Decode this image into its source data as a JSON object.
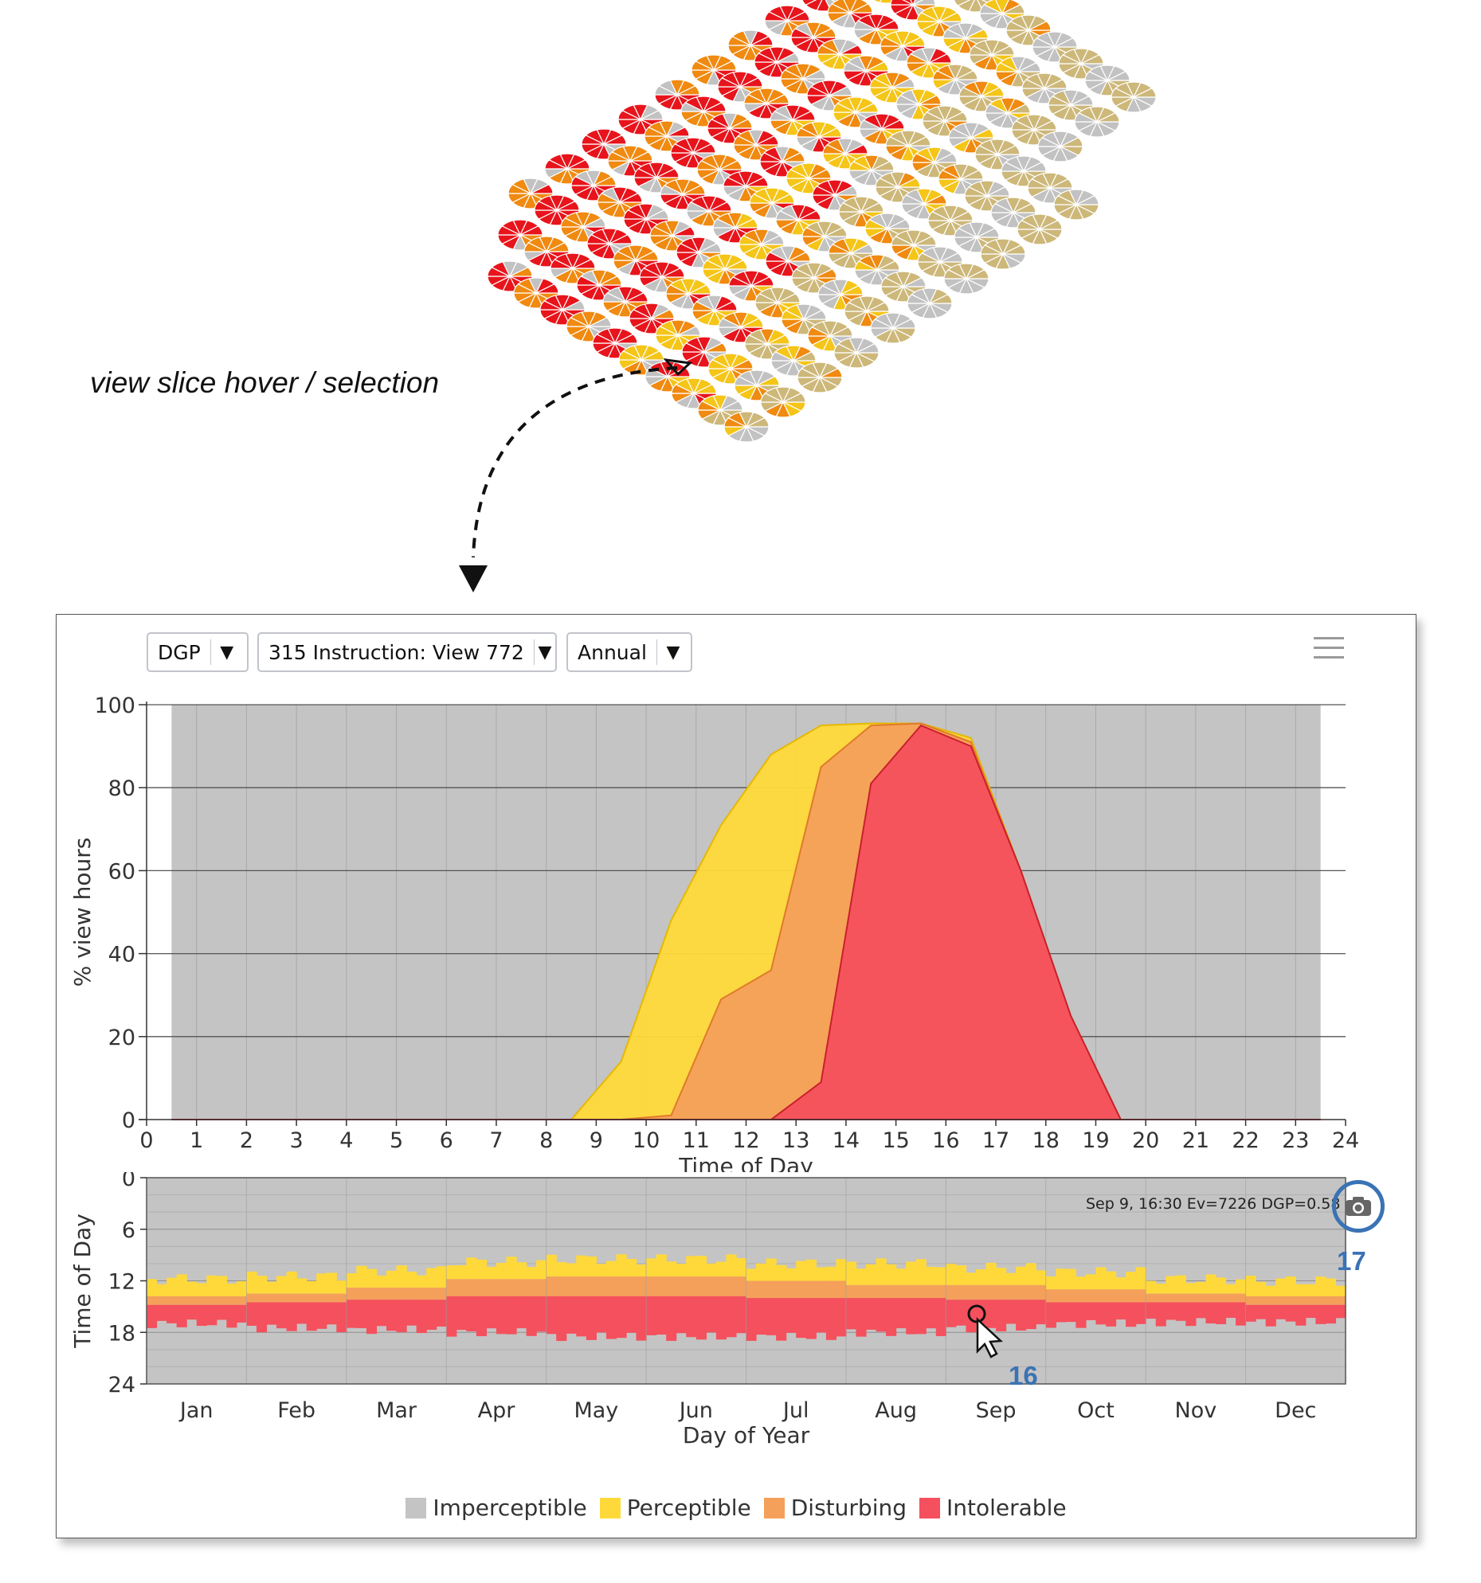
{
  "annotation": {
    "text": "view slice hover / selection"
  },
  "toolbar": {
    "metric": "DGP",
    "view": "315 Instruction: View 772",
    "period": "Annual",
    "caret": "▼"
  },
  "colors": {
    "imperceptible": "#c4c4c4",
    "perceptible": "#ffd93a",
    "disturbing": "#f4a05a",
    "intolerable": "#f5505d",
    "accent": "#3a73b5"
  },
  "legend": [
    "Imperceptible",
    "Perceptible",
    "Disturbing",
    "Intolerable"
  ],
  "tooltip": {
    "text": "Sep 9, 16:30 Ev=7226 DGP=0.58"
  },
  "callouts": {
    "camera_number": "17",
    "cursor_number": "16"
  },
  "chart_data": [
    {
      "type": "area",
      "title": "",
      "xlabel": "Time of Day",
      "ylabel": "% view hours",
      "xlim": [
        0,
        24
      ],
      "ylim": [
        0,
        100
      ],
      "x_ticks": [
        "0",
        "1",
        "2",
        "3",
        "4",
        "5",
        "6",
        "7",
        "8",
        "9",
        "10",
        "11",
        "12",
        "13",
        "14",
        "15",
        "16",
        "17",
        "18",
        "19",
        "20",
        "21",
        "22",
        "23",
        "24"
      ],
      "y_ticks": [
        "0",
        "20",
        "40",
        "60",
        "80",
        "100"
      ],
      "background_range": [
        0.5,
        23.5
      ],
      "grid": true,
      "x": [
        0.5,
        1.5,
        2.5,
        3.5,
        4.5,
        5.5,
        6.5,
        7.5,
        8.5,
        9.5,
        10.5,
        11.5,
        12.5,
        13.5,
        14.5,
        15.5,
        16.5,
        17.5,
        18.5,
        19.5,
        20.5,
        21.5,
        22.5,
        23.5
      ],
      "series": [
        {
          "name": "Perceptible",
          "values": [
            0,
            0,
            0,
            0,
            0,
            0,
            0,
            0,
            0,
            14,
            48,
            71,
            88,
            95,
            95.5,
            95.5,
            92,
            60,
            25,
            0,
            0,
            0,
            0,
            0
          ]
        },
        {
          "name": "Disturbing",
          "values": [
            0,
            0,
            0,
            0,
            0,
            0,
            0,
            0,
            0,
            0,
            1,
            29,
            36,
            85,
            95,
            95.5,
            91,
            60,
            25,
            0,
            0,
            0,
            0,
            0
          ]
        },
        {
          "name": "Intolerable",
          "values": [
            0,
            0,
            0,
            0,
            0,
            0,
            0,
            0,
            0,
            0,
            0,
            0,
            0,
            9,
            81,
            95,
            90,
            60,
            25,
            0,
            0,
            0,
            0,
            0
          ]
        }
      ]
    },
    {
      "type": "heatmap",
      "xlabel": "Day of Year",
      "ylabel": "Time of Day",
      "y_ticks": [
        "0",
        "6",
        "12",
        "18",
        "24"
      ],
      "months": [
        "Jan",
        "Feb",
        "Mar",
        "Apr",
        "May",
        "Jun",
        "Jul",
        "Aug",
        "Sep",
        "Oct",
        "Nov",
        "Dec"
      ],
      "categories": [
        "Imperceptible",
        "Perceptible",
        "Disturbing",
        "Intolerable"
      ],
      "monthly_bands_hours": [
        {
          "month": "Jan",
          "perceptible": [
            11.8,
            13.8
          ],
          "disturbing": [
            13.8,
            14.8
          ],
          "intolerable": [
            14.8,
            17.0
          ]
        },
        {
          "month": "Feb",
          "perceptible": [
            11.5,
            13.5
          ],
          "disturbing": [
            13.5,
            14.5
          ],
          "intolerable": [
            14.5,
            17.5
          ]
        },
        {
          "month": "Mar",
          "perceptible": [
            10.8,
            12.8
          ],
          "disturbing": [
            12.8,
            14.2
          ],
          "intolerable": [
            14.2,
            17.7
          ]
        },
        {
          "month": "Apr",
          "perceptible": [
            9.8,
            11.8
          ],
          "disturbing": [
            11.8,
            13.8
          ],
          "intolerable": [
            13.8,
            18.0
          ]
        },
        {
          "month": "May",
          "perceptible": [
            9.5,
            11.5
          ],
          "disturbing": [
            11.5,
            13.8
          ],
          "intolerable": [
            13.8,
            18.5
          ]
        },
        {
          "month": "Jun",
          "perceptible": [
            9.5,
            11.5
          ],
          "disturbing": [
            11.5,
            13.8
          ],
          "intolerable": [
            13.8,
            18.5
          ]
        },
        {
          "month": "Jul",
          "perceptible": [
            10.0,
            12.0
          ],
          "disturbing": [
            12.0,
            14.0
          ],
          "intolerable": [
            14.0,
            18.5
          ]
        },
        {
          "month": "Aug",
          "perceptible": [
            10.0,
            12.5
          ],
          "disturbing": [
            12.5,
            14.0
          ],
          "intolerable": [
            14.0,
            18.0
          ]
        },
        {
          "month": "Sep",
          "perceptible": [
            10.5,
            12.5
          ],
          "disturbing": [
            12.5,
            14.2
          ],
          "intolerable": [
            14.2,
            17.5
          ]
        },
        {
          "month": "Oct",
          "perceptible": [
            11.0,
            13.0
          ],
          "disturbing": [
            13.0,
            14.5
          ],
          "intolerable": [
            14.5,
            17.0
          ]
        },
        {
          "month": "Nov",
          "perceptible": [
            11.8,
            13.5
          ],
          "disturbing": [
            13.5,
            14.5
          ],
          "intolerable": [
            14.5,
            16.8
          ]
        },
        {
          "month": "Dec",
          "perceptible": [
            12.0,
            13.8
          ],
          "disturbing": [
            13.8,
            14.8
          ],
          "intolerable": [
            14.8,
            16.8
          ]
        }
      ]
    }
  ]
}
